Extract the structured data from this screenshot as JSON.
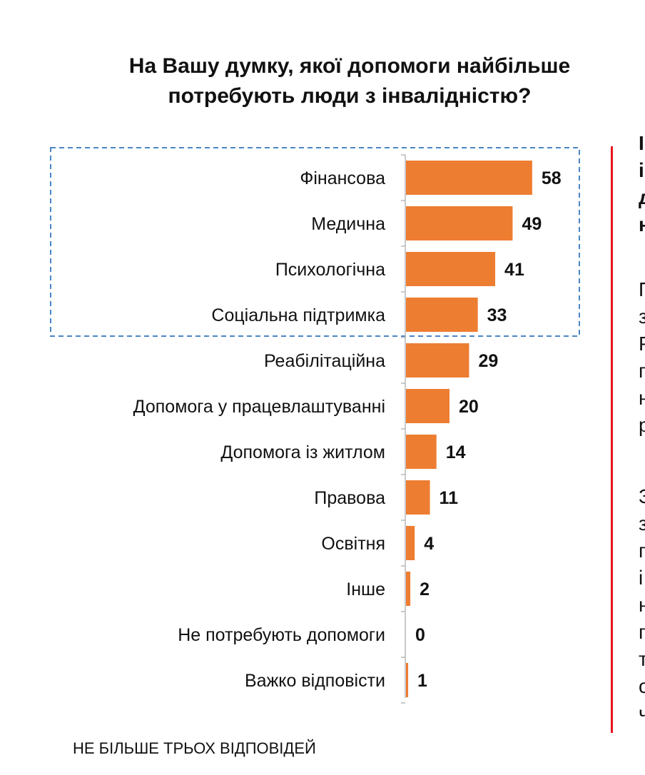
{
  "title_line1": "На Вашу думку, якої допомоги найбільше",
  "title_line2": "потребують люди з інвалідністю?",
  "footnote": "НЕ БІЛЬШЕ ТРЬОХ ВІДПОВІДЕЙ",
  "colors": {
    "bar": "#ed7d31",
    "highlight_box": "#4a86c5",
    "red_line": "#e8141b"
  },
  "side_panel_fragments": [
    "І",
    "і",
    "д",
    "н",
    "П",
    "з",
    "Р",
    "п",
    "н",
    "р",
    "З",
    "з",
    "п",
    "і",
    "н",
    "п",
    "т",
    "с",
    "ч"
  ],
  "chart_data": {
    "type": "bar",
    "orientation": "horizontal",
    "categories": [
      "Фінансова",
      "Медична",
      "Психологічна",
      "Соціальна підтримка",
      "Реабілітаційна",
      "Допомога у працевлаштуванні",
      "Допомога із житлом",
      "Правова",
      "Освітня",
      "Інше",
      "Не потребують допомоги",
      "Важко відповісти"
    ],
    "values": [
      58,
      49,
      41,
      33,
      29,
      20,
      14,
      11,
      4,
      2,
      0,
      1
    ],
    "highlighted_categories": [
      "Фінансова",
      "Медична",
      "Психологічна",
      "Соціальна підтримка"
    ],
    "xlim": [
      0,
      60
    ],
    "grid": false,
    "legend": "none"
  }
}
